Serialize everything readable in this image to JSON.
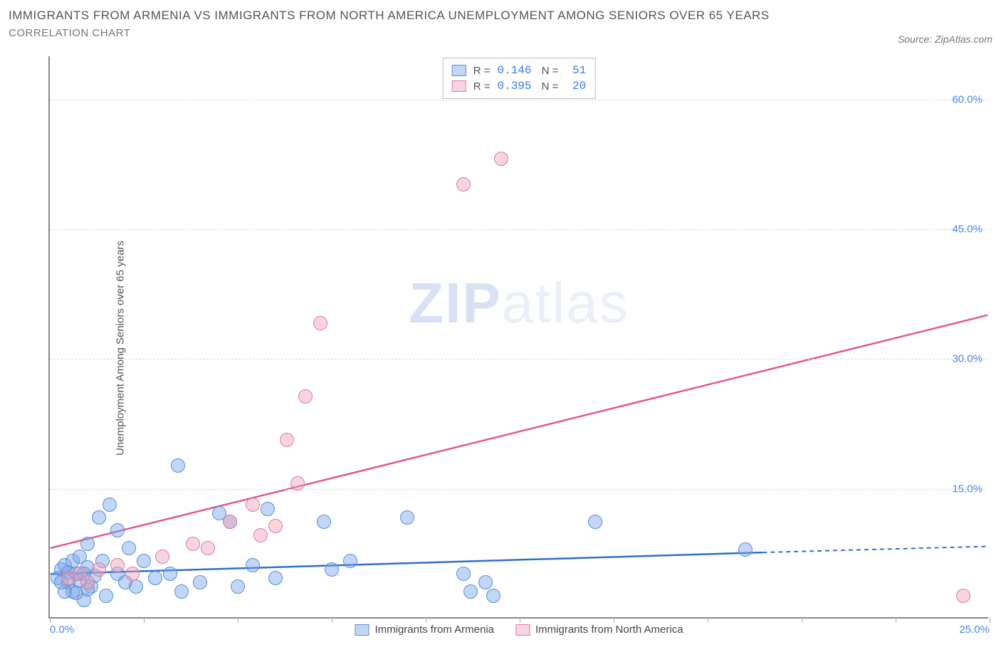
{
  "header": {
    "title": "IMMIGRANTS FROM ARMENIA VS IMMIGRANTS FROM NORTH AMERICA UNEMPLOYMENT AMONG SENIORS OVER 65 YEARS",
    "subtitle": "CORRELATION CHART",
    "source_prefix": "Source: ",
    "source_name": "ZipAtlas.com"
  },
  "chart": {
    "type": "scatter",
    "ylabel": "Unemployment Among Seniors over 65 years",
    "xlim": [
      0,
      25
    ],
    "ylim": [
      0,
      65
    ],
    "y_ticks": [
      15.0,
      30.0,
      45.0,
      60.0
    ],
    "x_ticks": [
      0.0,
      25.0
    ],
    "x_minor_step": 2.5,
    "background_color": "#ffffff",
    "grid_color": "#dddddd",
    "axis_color": "#888888",
    "tick_label_color": "#4a86e8",
    "watermark": {
      "bold": "ZIP",
      "rest": "atlas"
    },
    "series": [
      {
        "name": "Immigrants from Armenia",
        "marker_fill": "rgba(120,165,235,0.45)",
        "marker_stroke": "#5b8fd6",
        "marker_radius": 10,
        "trend_color": "#2f6fd0",
        "trend_width": 2.5,
        "trend_start": [
          0,
          5.0
        ],
        "trend_end_solid": [
          19,
          7.5
        ],
        "trend_end_dash": [
          25,
          8.2
        ],
        "R": "0.146",
        "N": "51",
        "points": [
          [
            0.2,
            4.5
          ],
          [
            0.3,
            5.5
          ],
          [
            0.4,
            6.0
          ],
          [
            0.5,
            4.0
          ],
          [
            0.5,
            5.2
          ],
          [
            0.6,
            3.0
          ],
          [
            0.6,
            6.5
          ],
          [
            0.7,
            5.0
          ],
          [
            0.8,
            4.2
          ],
          [
            0.8,
            7.0
          ],
          [
            0.9,
            2.0
          ],
          [
            1.0,
            5.8
          ],
          [
            1.0,
            8.5
          ],
          [
            1.1,
            3.5
          ],
          [
            1.2,
            4.8
          ],
          [
            1.3,
            11.5
          ],
          [
            1.4,
            6.5
          ],
          [
            1.5,
            2.5
          ],
          [
            1.6,
            13.0
          ],
          [
            1.8,
            5.0
          ],
          [
            1.8,
            10.0
          ],
          [
            2.0,
            4.0
          ],
          [
            2.1,
            8.0
          ],
          [
            2.3,
            3.5
          ],
          [
            2.5,
            6.5
          ],
          [
            2.8,
            4.5
          ],
          [
            3.2,
            5.0
          ],
          [
            3.4,
            17.5
          ],
          [
            3.5,
            3.0
          ],
          [
            4.0,
            4.0
          ],
          [
            4.5,
            12.0
          ],
          [
            4.8,
            11.0
          ],
          [
            5.0,
            3.5
          ],
          [
            5.4,
            6.0
          ],
          [
            5.8,
            12.5
          ],
          [
            6.0,
            4.5
          ],
          [
            7.3,
            11.0
          ],
          [
            7.5,
            5.5
          ],
          [
            8.0,
            6.5
          ],
          [
            9.5,
            11.5
          ],
          [
            11.0,
            5.0
          ],
          [
            11.2,
            3.0
          ],
          [
            11.6,
            4.0
          ],
          [
            11.8,
            2.5
          ],
          [
            14.5,
            11.0
          ],
          [
            18.5,
            7.8
          ],
          [
            0.4,
            3.0
          ],
          [
            0.7,
            2.8
          ],
          [
            1.0,
            3.2
          ],
          [
            0.3,
            4.0
          ],
          [
            0.9,
            5.0
          ]
        ]
      },
      {
        "name": "Immigrants from North America",
        "marker_fill": "rgba(240,160,185,0.45)",
        "marker_stroke": "#d77fa0",
        "marker_radius": 10,
        "trend_color": "#e05a8a",
        "trend_width": 2.5,
        "trend_start": [
          0,
          8.0
        ],
        "trend_end_solid": [
          25,
          35.0
        ],
        "R": "0.395",
        "N": "20",
        "points": [
          [
            0.5,
            4.5
          ],
          [
            0.8,
            5.0
          ],
          [
            1.0,
            4.0
          ],
          [
            1.3,
            5.5
          ],
          [
            1.8,
            6.0
          ],
          [
            2.2,
            5.0
          ],
          [
            3.8,
            8.5
          ],
          [
            4.2,
            8.0
          ],
          [
            4.8,
            11.0
          ],
          [
            5.4,
            13.0
          ],
          [
            5.6,
            9.5
          ],
          [
            6.0,
            10.5
          ],
          [
            6.3,
            20.5
          ],
          [
            6.6,
            15.5
          ],
          [
            6.8,
            25.5
          ],
          [
            7.2,
            34.0
          ],
          [
            11.0,
            50.0
          ],
          [
            12.0,
            53.0
          ],
          [
            24.3,
            2.5
          ],
          [
            3.0,
            7.0
          ]
        ]
      }
    ],
    "legend_bottom": [
      {
        "label": "Immigrants from Armenia",
        "fill": "rgba(120,165,235,0.45)",
        "stroke": "#5b8fd6"
      },
      {
        "label": "Immigrants from North America",
        "fill": "rgba(240,160,185,0.45)",
        "stroke": "#d77fa0"
      }
    ]
  }
}
